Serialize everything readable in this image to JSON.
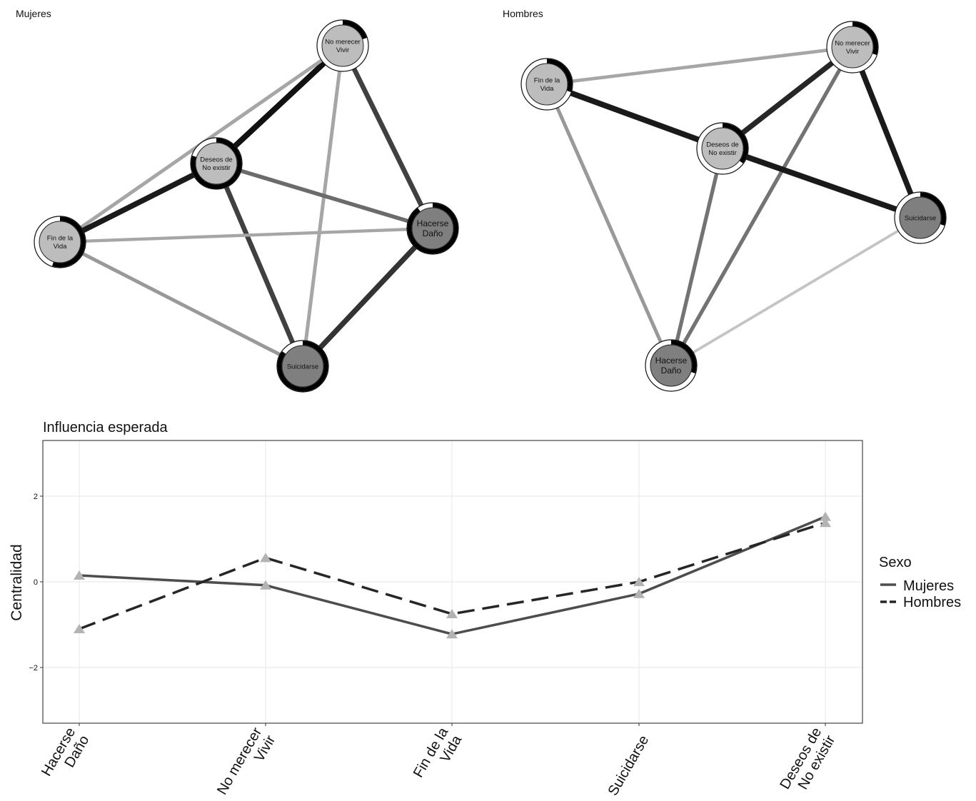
{
  "colors": {
    "node_light": "#bdbdbd",
    "node_dark": "#7f7f7f",
    "line_mujeres": "#4d4d4d",
    "line_hombres": "#262626",
    "marker": "#b3b3b3",
    "grid": "#ebebeb"
  },
  "chart_data": [
    {
      "type": "network",
      "title": "Mujeres",
      "nodes": [
        {
          "id": "nm",
          "label": [
            "No merecer",
            "Vivir"
          ],
          "shade": "light",
          "pie": 0.2
        },
        {
          "id": "dd",
          "label": [
            "Deseos de",
            "No existir"
          ],
          "shade": "light",
          "pie": 0.8
        },
        {
          "id": "fv",
          "label": [
            "Fin de la",
            "Vida"
          ],
          "shade": "light",
          "pie": 0.55
        },
        {
          "id": "hd",
          "label": [
            "Hacerse",
            "Daño"
          ],
          "shade": "dark",
          "pie": 0.9
        },
        {
          "id": "su",
          "label": [
            "Suicidarse"
          ],
          "shade": "dark",
          "pie": 0.85
        }
      ],
      "edges": [
        {
          "from": "nm",
          "to": "dd",
          "weight": 1.0,
          "shade": "#111111"
        },
        {
          "from": "nm",
          "to": "hd",
          "weight": 0.8,
          "shade": "#404040"
        },
        {
          "from": "nm",
          "to": "su",
          "weight": 0.5,
          "shade": "#a6a6a6"
        },
        {
          "from": "nm",
          "to": "fv",
          "weight": 0.5,
          "shade": "#a6a6a6"
        },
        {
          "from": "dd",
          "to": "fv",
          "weight": 0.95,
          "shade": "#1a1a1a"
        },
        {
          "from": "dd",
          "to": "hd",
          "weight": 0.6,
          "shade": "#6b6b6b"
        },
        {
          "from": "dd",
          "to": "su",
          "weight": 0.8,
          "shade": "#404040"
        },
        {
          "from": "fv",
          "to": "hd",
          "weight": 0.4,
          "shade": "#a6a6a6"
        },
        {
          "from": "fv",
          "to": "su",
          "weight": 0.5,
          "shade": "#999999"
        },
        {
          "from": "hd",
          "to": "su",
          "weight": 0.9,
          "shade": "#333333"
        }
      ]
    },
    {
      "type": "network",
      "title": "Hombres",
      "nodes": [
        {
          "id": "nm",
          "label": [
            "No merecer",
            "Vivir"
          ],
          "shade": "light",
          "pie": 0.3
        },
        {
          "id": "fv",
          "label": [
            "Fin de la",
            "Vida"
          ],
          "shade": "light",
          "pie": 0.3
        },
        {
          "id": "dd",
          "label": [
            "Deseos de",
            "No existir"
          ],
          "shade": "light",
          "pie": 0.35
        },
        {
          "id": "su",
          "label": [
            "Suicidarse"
          ],
          "shade": "dark",
          "pie": 0.3
        },
        {
          "id": "hd",
          "label": [
            "Hacerse",
            "Daño"
          ],
          "shade": "dark",
          "pie": 0.3
        }
      ],
      "edges": [
        {
          "from": "fv",
          "to": "nm",
          "weight": 0.45,
          "shade": "#a6a6a6"
        },
        {
          "from": "fv",
          "to": "dd",
          "weight": 1.0,
          "shade": "#1a1a1a"
        },
        {
          "from": "fv",
          "to": "hd",
          "weight": 0.5,
          "shade": "#999999"
        },
        {
          "from": "nm",
          "to": "dd",
          "weight": 0.9,
          "shade": "#262626"
        },
        {
          "from": "nm",
          "to": "su",
          "weight": 0.95,
          "shade": "#1a1a1a"
        },
        {
          "from": "nm",
          "to": "hd",
          "weight": 0.55,
          "shade": "#737373"
        },
        {
          "from": "dd",
          "to": "su",
          "weight": 1.0,
          "shade": "#1a1a1a"
        },
        {
          "from": "dd",
          "to": "hd",
          "weight": 0.55,
          "shade": "#737373"
        },
        {
          "from": "su",
          "to": "hd",
          "weight": 0.3,
          "shade": "#c4c4c4"
        }
      ]
    },
    {
      "type": "line",
      "title": "Influencia esperada",
      "xlabel": "",
      "ylabel": "Centralidad",
      "categories": [
        [
          "Hacerse",
          "Daño"
        ],
        [
          "No merecer",
          "Vivir"
        ],
        [
          "Fin de la",
          "Vida"
        ],
        [
          "Suicidarse"
        ],
        [
          "Deseos de",
          "No existir"
        ]
      ],
      "ylim": [
        -3.3,
        3.3
      ],
      "yticks": [
        -2,
        0,
        2
      ],
      "ytick_labels": [
        "−2",
        "0",
        "2"
      ],
      "grid": true,
      "legend": {
        "title": "Sexo",
        "position": "right"
      },
      "series": [
        {
          "name": "Mujeres",
          "values": [
            0.15,
            -0.08,
            -1.22,
            -0.28,
            1.52
          ],
          "dash": "solid"
        },
        {
          "name": "Hombres",
          "values": [
            -1.1,
            0.56,
            -0.75,
            0.0,
            1.38
          ],
          "dash": "dashed"
        }
      ]
    }
  ]
}
